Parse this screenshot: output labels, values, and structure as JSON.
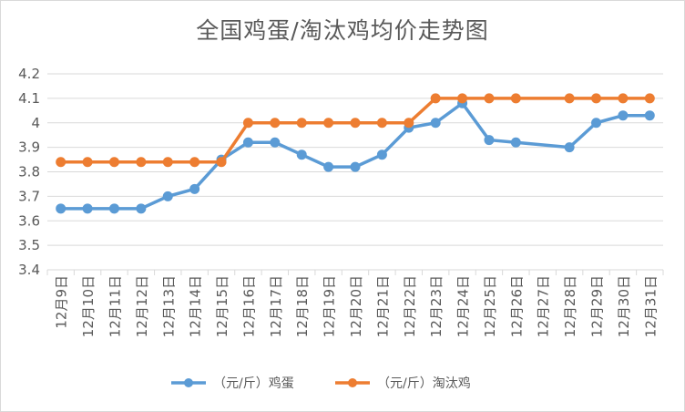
{
  "chart_data": {
    "type": "line",
    "title": "全国鸡蛋/淘汰鸡均价走势图",
    "categories": [
      "12月9日",
      "12月10日",
      "12月11日",
      "12月12日",
      "12月13日",
      "12月14日",
      "12月15日",
      "12月16日",
      "12月17日",
      "12月18日",
      "12月19日",
      "12月20日",
      "12月21日",
      "12月22日",
      "12月23日",
      "12月24日",
      "12月25日",
      "12月26日",
      "12月27日",
      "12月28日",
      "12月29日",
      "12月30日",
      "12月31日"
    ],
    "series": [
      {
        "name": "（元/斤）鸡蛋",
        "color": "#5b9bd5",
        "values": [
          3.65,
          3.65,
          3.65,
          3.65,
          3.7,
          3.73,
          3.85,
          3.92,
          3.92,
          3.87,
          3.82,
          3.82,
          3.87,
          3.98,
          4.0,
          4.08,
          3.93,
          3.92,
          null,
          3.9,
          4.0,
          4.03,
          4.03
        ]
      },
      {
        "name": "（元/斤）淘汰鸡",
        "color": "#ed7d31",
        "values": [
          3.84,
          3.84,
          3.84,
          3.84,
          3.84,
          3.84,
          3.84,
          4.0,
          4.0,
          4.0,
          4.0,
          4.0,
          4.0,
          4.0,
          4.1,
          4.1,
          4.1,
          4.1,
          null,
          4.1,
          4.1,
          4.1,
          4.1
        ]
      }
    ],
    "yticks": [
      "3.4",
      "3.5",
      "3.6",
      "3.7",
      "3.8",
      "3.9",
      "4",
      "4.1",
      "4.2"
    ],
    "ylim": [
      3.4,
      4.2
    ],
    "grid": true,
    "legend": "bottom"
  }
}
